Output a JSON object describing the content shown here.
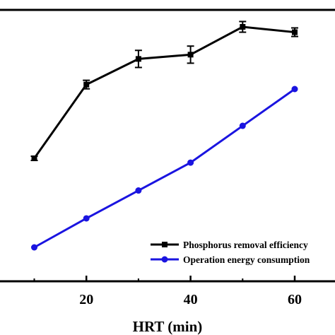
{
  "chart_data": {
    "type": "line",
    "xlabel": "HRT (min)",
    "x_ticks": [
      20,
      40,
      60
    ],
    "xlim": [
      0,
      68.5
    ],
    "series": [
      {
        "name": "Phosphorus removal efficiency",
        "color": "#000000",
        "marker": "square",
        "x": [
          10,
          20,
          30,
          40,
          50,
          60
        ],
        "y": [
          0.36,
          0.705,
          0.825,
          0.845,
          0.975,
          0.95
        ],
        "err": [
          0.01,
          0.02,
          0.04,
          0.04,
          0.025,
          0.02
        ]
      },
      {
        "name": "Operation energy consumption",
        "color": "#1a14e0",
        "marker": "circle",
        "x": [
          10,
          20,
          30,
          40,
          50,
          60
        ],
        "y": [
          -0.09,
          0.17,
          0.42,
          0.67,
          1.0,
          1.33
        ]
      }
    ],
    "legend_position": "bottom-right"
  }
}
